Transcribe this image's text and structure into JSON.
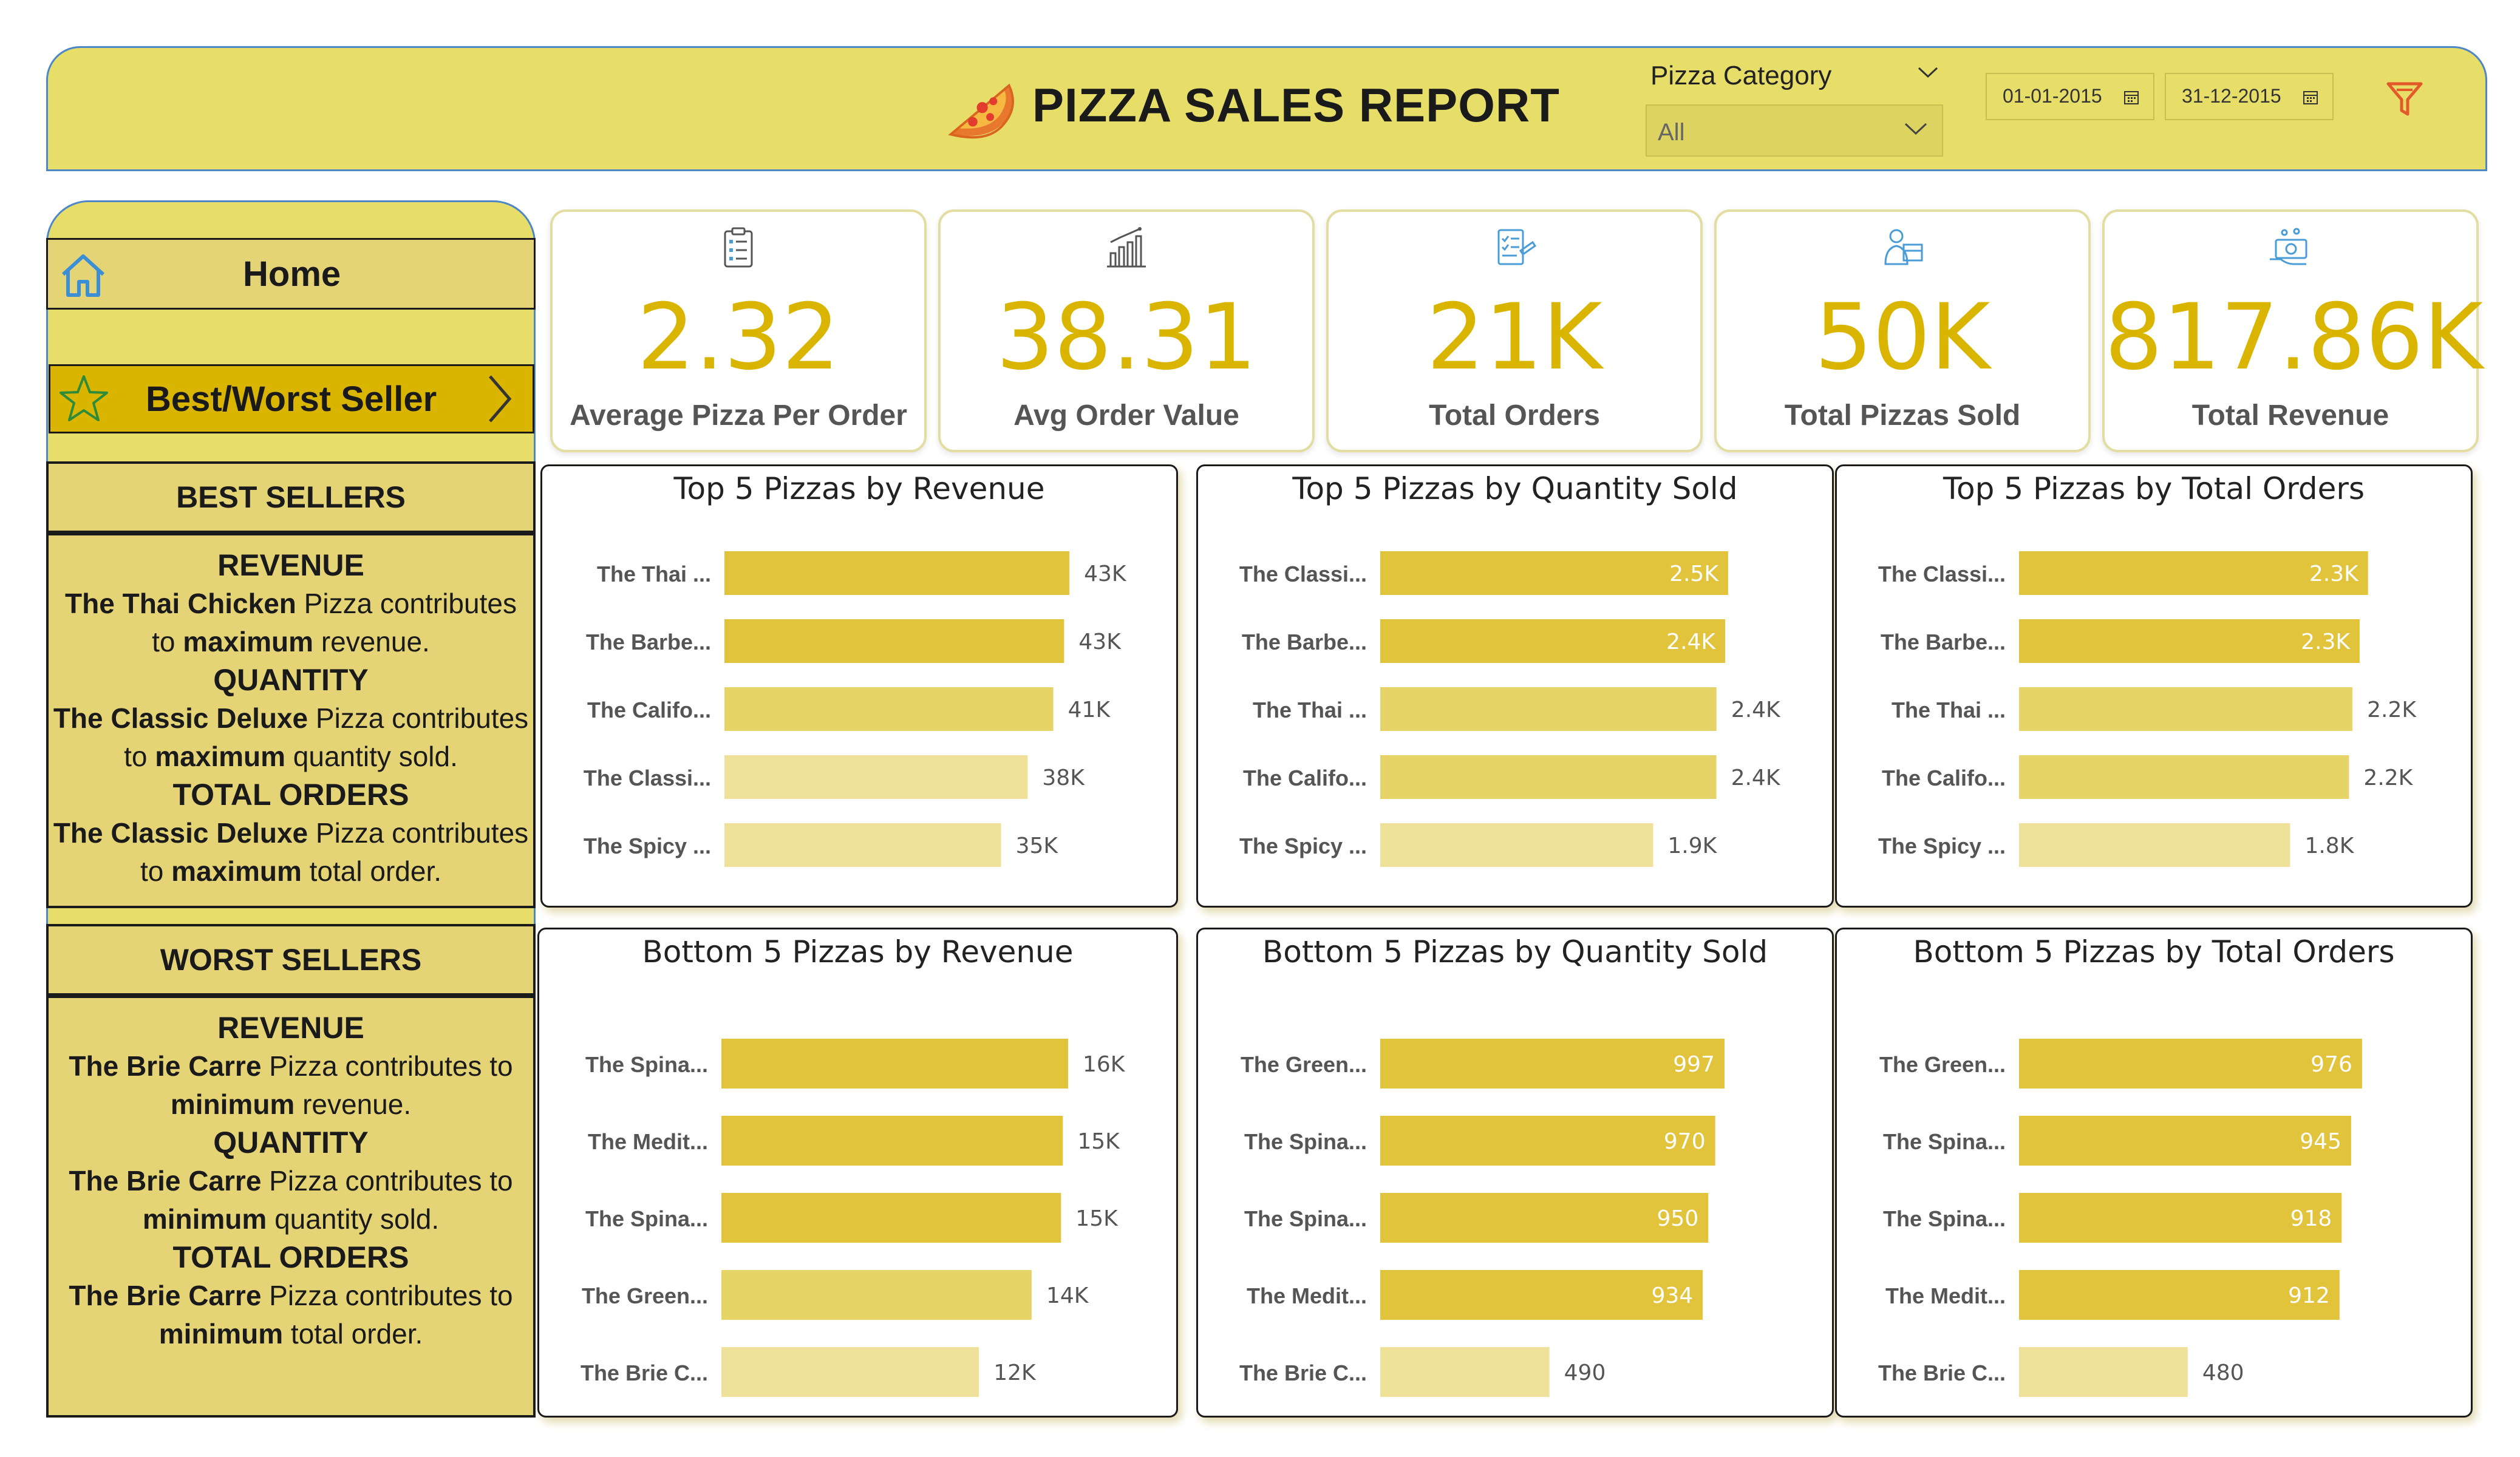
{
  "header": {
    "title": "PIZZA SALES REPORT",
    "category_filter_label": "Pizza Category",
    "category_value": "All",
    "date_start": "01-01-2015",
    "date_end": "31-12-2015",
    "icons": {
      "logo": "pizza-slice-icon",
      "filter": "filter-icon",
      "calendar": "calendar-icon"
    }
  },
  "colors": {
    "header_bg": "#e7de6a",
    "accent": "#d9b500",
    "bar_dark": "#e2c43c",
    "bar_mid": "#e7d469",
    "bar_light": "#efe19a"
  },
  "nav": {
    "home_label": "Home",
    "best_worst_label": "Best/Worst Seller"
  },
  "best": {
    "heading": "BEST SELLERS",
    "lines": [
      {
        "type": "h",
        "text": "REVENUE"
      },
      {
        "type": "p",
        "parts": [
          {
            "b": true,
            "t": "The Thai Chicken"
          },
          {
            "b": false,
            "t": " Pizza contributes"
          }
        ]
      },
      {
        "type": "p",
        "parts": [
          {
            "b": false,
            "t": "to "
          },
          {
            "b": true,
            "t": "maximum"
          },
          {
            "b": false,
            "t": " revenue."
          }
        ]
      },
      {
        "type": "h",
        "text": "QUANTITY"
      },
      {
        "type": "p",
        "parts": [
          {
            "b": true,
            "t": "The Classic Deluxe"
          },
          {
            "b": false,
            "t": " Pizza contributes"
          }
        ]
      },
      {
        "type": "p",
        "parts": [
          {
            "b": false,
            "t": "to "
          },
          {
            "b": true,
            "t": "maximum"
          },
          {
            "b": false,
            "t": " quantity sold."
          }
        ]
      },
      {
        "type": "h",
        "text": "TOTAL ORDERS"
      },
      {
        "type": "p",
        "parts": [
          {
            "b": true,
            "t": "The Classic Deluxe"
          },
          {
            "b": false,
            "t": " Pizza contributes"
          }
        ]
      },
      {
        "type": "p",
        "parts": [
          {
            "b": false,
            "t": "to "
          },
          {
            "b": true,
            "t": "maximum"
          },
          {
            "b": false,
            "t": " total order."
          }
        ]
      }
    ]
  },
  "worst": {
    "heading": "WORST SELLERS",
    "lines": [
      {
        "type": "h",
        "text": "REVENUE"
      },
      {
        "type": "p",
        "parts": [
          {
            "b": true,
            "t": "The Brie Carre"
          },
          {
            "b": false,
            "t": " Pizza contributes to"
          }
        ]
      },
      {
        "type": "p",
        "parts": [
          {
            "b": true,
            "t": "minimum"
          },
          {
            "b": false,
            "t": " revenue."
          }
        ]
      },
      {
        "type": "h",
        "text": "QUANTITY"
      },
      {
        "type": "p",
        "parts": [
          {
            "b": true,
            "t": "The Brie Carre"
          },
          {
            "b": false,
            "t": " Pizza contributes to"
          }
        ]
      },
      {
        "type": "p",
        "parts": [
          {
            "b": true,
            "t": "minimum"
          },
          {
            "b": false,
            "t": " quantity sold."
          }
        ]
      },
      {
        "type": "h",
        "text": "TOTAL ORDERS"
      },
      {
        "type": "p",
        "parts": [
          {
            "b": true,
            "t": "The Brie Carre"
          },
          {
            "b": false,
            "t": " Pizza contributes to"
          }
        ]
      },
      {
        "type": "p",
        "parts": [
          {
            "b": true,
            "t": "minimum"
          },
          {
            "b": false,
            "t": " total order."
          }
        ]
      }
    ]
  },
  "kpis": [
    {
      "value": "2.32",
      "label": "Average Pizza Per Order",
      "icon": "clipboard-list-icon"
    },
    {
      "value": "38.31",
      "label": "Avg Order Value",
      "icon": "bar-chart-icon"
    },
    {
      "value": "21K",
      "label": "Total Orders",
      "icon": "order-checklist-icon"
    },
    {
      "value": "50K",
      "label": "Total Pizzas Sold",
      "icon": "delivery-person-icon"
    },
    {
      "value": "817.86K",
      "label": "Total Revenue",
      "icon": "money-hand-icon"
    }
  ],
  "chart_data": [
    {
      "type": "bar",
      "orientation": "horizontal",
      "title": "Top 5 Pizzas by Revenue",
      "categories": [
        "The Thai ...",
        "The Barbe...",
        "The Califo...",
        "The Classi...",
        "The Spicy ..."
      ],
      "values": [
        43434,
        42768,
        41410,
        38181,
        34831
      ],
      "labels": [
        "43K",
        "43K",
        "41K",
        "38K",
        "35K"
      ],
      "xlim": [
        0,
        50000
      ]
    },
    {
      "type": "bar",
      "orientation": "horizontal",
      "title": "Top 5 Pizzas by Quantity Sold",
      "categories": [
        "The Classi...",
        "The Barbe...",
        "The Thai ...",
        "The Califo...",
        "The Spicy ..."
      ],
      "values": [
        2453,
        2432,
        2371,
        2370,
        1924
      ],
      "labels": [
        "2.5K",
        "2.4K",
        "2.4K",
        "2.4K",
        "1.9K"
      ],
      "xlim": [
        0,
        2800
      ]
    },
    {
      "type": "bar",
      "orientation": "horizontal",
      "title": "Top 5 Pizzas by Total Orders",
      "categories": [
        "The Classi...",
        "The Barbe...",
        "The Thai ...",
        "The Califo...",
        "The Spicy ..."
      ],
      "values": [
        2329,
        2273,
        2225,
        2202,
        1809
      ],
      "labels": [
        "2.3K",
        "2.3K",
        "2.2K",
        "2.2K",
        "1.8K"
      ],
      "xlim": [
        0,
        2650
      ]
    },
    {
      "type": "bar",
      "orientation": "horizontal",
      "title": "Bottom 5 Pizzas by Revenue",
      "categories": [
        "The Spina...",
        "The Medit...",
        "The Spina...",
        "The Green...",
        "The Brie C..."
      ],
      "values": [
        15596,
        15360,
        15277,
        13956,
        11588
      ],
      "labels": [
        "16K",
        "15K",
        "15K",
        "14K",
        "12K"
      ],
      "xlim": [
        0,
        18000
      ]
    },
    {
      "type": "bar",
      "orientation": "horizontal",
      "title": "Bottom 5 Pizzas by Quantity Sold",
      "categories": [
        "The Green...",
        "The Spina...",
        "The Spina...",
        "The Medit...",
        "The Brie C..."
      ],
      "values": [
        997,
        970,
        950,
        934,
        490
      ],
      "labels": [
        "997",
        "970",
        "950",
        "934",
        "490"
      ],
      "xlim": [
        0,
        1150
      ]
    },
    {
      "type": "bar",
      "orientation": "horizontal",
      "title": "Bottom 5 Pizzas by Total Orders",
      "categories": [
        "The Green...",
        "The Spina...",
        "The Spina...",
        "The Medit...",
        "The Brie C..."
      ],
      "values": [
        976,
        945,
        918,
        912,
        480
      ],
      "labels": [
        "976",
        "945",
        "918",
        "912",
        "480"
      ],
      "xlim": [
        0,
        1130
      ]
    }
  ]
}
